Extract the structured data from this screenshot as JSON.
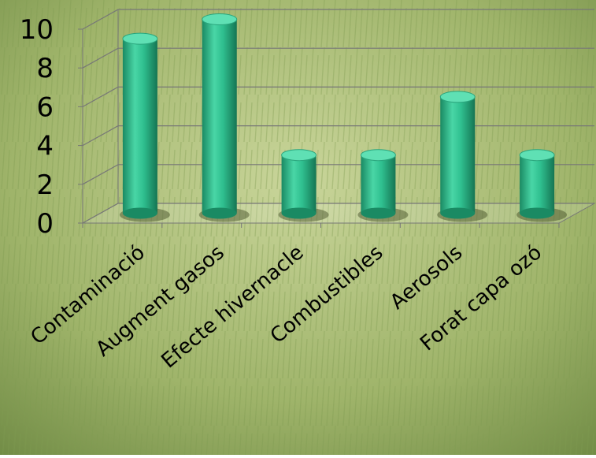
{
  "chart_data": {
    "type": "bar",
    "categories": [
      "Contaminació",
      "Augment gasos",
      "Efecte hivernacle",
      "Combustibles",
      "Aerosols",
      "Forat capa ozó"
    ],
    "values": [
      9,
      10,
      3,
      3,
      6,
      3
    ],
    "color": "#2fbf8f",
    "ylim": [
      0,
      10
    ],
    "yticks": [
      0,
      2,
      4,
      6,
      8,
      10
    ],
    "grid": true
  }
}
